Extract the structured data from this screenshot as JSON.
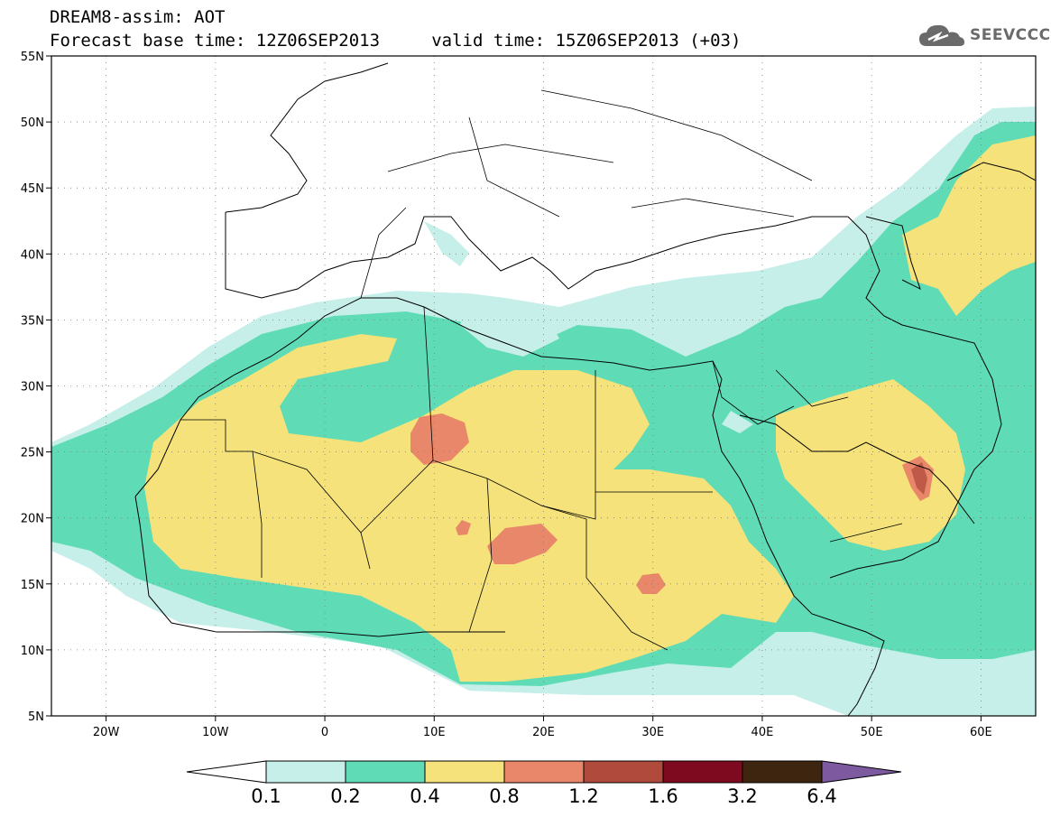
{
  "header": {
    "title_line1": "DREAM8-assim: AOT",
    "title_line2": "Forecast base time: 12Z06SEP2013     valid time: 15Z06SEP2013 (+03)",
    "logo_text": "SEEVCCC",
    "logo_icon": "cloud-icon"
  },
  "map": {
    "lat_labels": [
      "55N",
      "50N",
      "45N",
      "40N",
      "35N",
      "30N",
      "25N",
      "20N",
      "15N",
      "10N",
      "5N"
    ],
    "lon_labels": [
      "20W",
      "10W",
      "0",
      "10E",
      "20E",
      "30E",
      "40E",
      "50E",
      "60E"
    ],
    "lon_range": [
      -25,
      65
    ],
    "lat_range": [
      5,
      55
    ],
    "gridlines": "dotted",
    "colors": {
      "ocean_land": "#ffffff",
      "coast_border": "#000000"
    }
  },
  "colorbar": {
    "labels": [
      "0.1",
      "0.2",
      "0.4",
      "0.8",
      "1.2",
      "1.6",
      "3.2",
      "6.4"
    ],
    "colors": [
      "#ffffff",
      "#c6efe9",
      "#5fdcb6",
      "#f5e27a",
      "#e8876a",
      "#b04a3c",
      "#7d0a1e",
      "#3d2510",
      "#7d59a0"
    ]
  }
}
